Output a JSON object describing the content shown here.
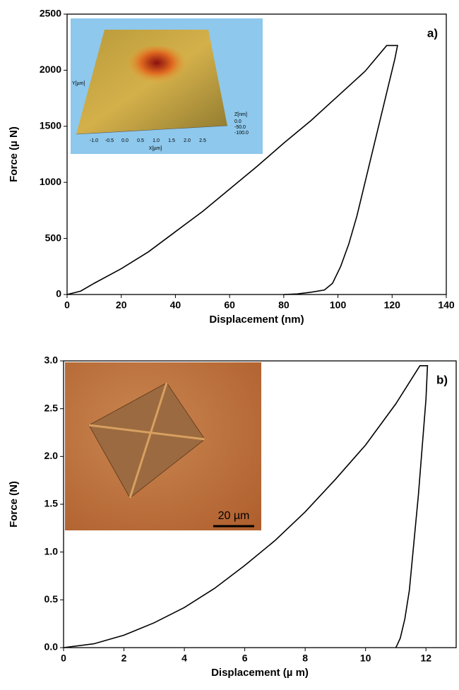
{
  "chart_data": [
    {
      "type": "line",
      "panel_label": "a)",
      "xlabel": "Displacement (nm)",
      "ylabel": "Force (µ N)",
      "xlim": [
        0,
        140
      ],
      "ylim": [
        0,
        2500
      ],
      "xticks": [
        0,
        20,
        40,
        60,
        80,
        100,
        120,
        140
      ],
      "yticks": [
        0,
        500,
        1000,
        1500,
        2000,
        2500
      ],
      "color": "#000000",
      "x": [
        0,
        5,
        10,
        20,
        30,
        40,
        50,
        60,
        70,
        80,
        90,
        100,
        110,
        118,
        122,
        121,
        118,
        115,
        112,
        110,
        107,
        104,
        101,
        98,
        95,
        90,
        85,
        80
      ],
      "values": [
        0,
        30,
        100,
        230,
        380,
        560,
        740,
        940,
        1140,
        1350,
        1550,
        1770,
        1990,
        2220,
        2220,
        2100,
        1800,
        1500,
        1200,
        1000,
        700,
        450,
        250,
        100,
        40,
        20,
        5,
        0
      ],
      "inset": {
        "x_title": "X[µm]",
        "y_title": "Y[µm]",
        "z_title": "Z[nm]",
        "x_labels": [
          "-1.0",
          "-0.5",
          "0.0",
          "0.5",
          "1.0",
          "1.5",
          "2.0",
          "2.5"
        ],
        "z_labels": [
          "0.0",
          "-50.0",
          "-100.0"
        ]
      }
    },
    {
      "type": "line",
      "panel_label": "b)",
      "xlabel": "Displacement (µ m)",
      "ylabel": "Force (N)",
      "xlim": [
        0,
        13
      ],
      "ylim": [
        0,
        3
      ],
      "xticks": [
        0,
        2,
        4,
        6,
        8,
        10,
        12
      ],
      "yticks": [
        {
          "value": 0,
          "label": "0.0"
        },
        {
          "value": 0.5,
          "label": "0.5"
        },
        {
          "value": 1,
          "label": "1.0"
        },
        {
          "value": 1.5,
          "label": "1.5"
        },
        {
          "value": 2,
          "label": "2.0"
        },
        {
          "value": 2.5,
          "label": "2.5"
        },
        {
          "value": 3,
          "label": "3.0"
        }
      ],
      "color": "#000000",
      "x": [
        0,
        1,
        2,
        3,
        4,
        5,
        6,
        7,
        8,
        9,
        10,
        11,
        11.8,
        12.05,
        12.0,
        11.9,
        11.75,
        11.6,
        11.45,
        11.3,
        11.15,
        11.05,
        11.0
      ],
      "values": [
        0,
        0.04,
        0.13,
        0.26,
        0.42,
        0.62,
        0.86,
        1.12,
        1.42,
        1.76,
        2.12,
        2.55,
        2.95,
        2.95,
        2.6,
        2.2,
        1.6,
        1.1,
        0.6,
        0.3,
        0.1,
        0.03,
        0
      ],
      "inset": {
        "scale_label": "20 µm"
      }
    }
  ]
}
